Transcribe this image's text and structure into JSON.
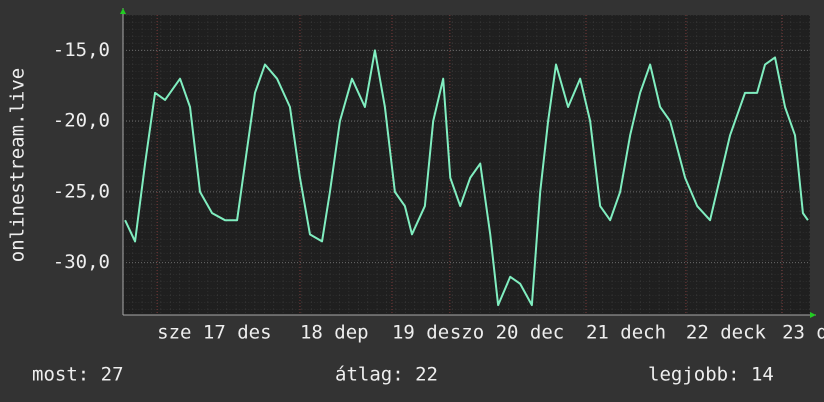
{
  "chart_data": {
    "type": "line",
    "y_label": "onlinestream.live",
    "xlim": [
      0,
      165
    ],
    "xticks": [
      {
        "value": 8.2,
        "label": "sze 17 des"
      },
      {
        "value": 42.5,
        "label": "18 dep"
      },
      {
        "value": 64.6,
        "label": "19 de"
      },
      {
        "value": 78.5,
        "label": "szo 20 dec"
      },
      {
        "value": 111.2,
        "label": "21 dech"
      },
      {
        "value": 135.2,
        "label": "22 deck"
      },
      {
        "value": 158.3,
        "label": "23 d"
      }
    ],
    "ylim": [
      -33.7,
      -12.5
    ],
    "yticks": [
      {
        "value": -15,
        "label": "-15,0"
      },
      {
        "value": -20,
        "label": "-20,0"
      },
      {
        "value": -25,
        "label": "-25,0"
      },
      {
        "value": -30,
        "label": "-30,0"
      }
    ],
    "grid": true,
    "series": [
      {
        "color": "#80eec0",
        "x": [
          0.5,
          2.9,
          5.3,
          7.7,
          10.1,
          13.7,
          16.1,
          18.5,
          21.4,
          24.5,
          27.4,
          29.3,
          31.7,
          34.1,
          37,
          40.1,
          42.5,
          44.9,
          47.8,
          49.7,
          52.1,
          55,
          58.1,
          60.5,
          62.9,
          65.3,
          67.7,
          69.4,
          72.5,
          74.5,
          76.9,
          78.6,
          81,
          83.4,
          85.8,
          88.2,
          90.1,
          93,
          95.4,
          98.2,
          100.2,
          102.1,
          104,
          106.9,
          109.8,
          112.2,
          114.6,
          117,
          119.4,
          121.8,
          124.2,
          126.6,
          129,
          131.4,
          135,
          137.9,
          141,
          143.4,
          145.8,
          149.4,
          152.3,
          154.2,
          156.6,
          159,
          161.4,
          163.3,
          164.5
        ],
        "values": [
          -27,
          -28.5,
          -23,
          -18,
          -18.5,
          -17,
          -19,
          -25,
          -26.5,
          -27,
          -27,
          -23,
          -18,
          -16,
          -17,
          -19,
          -24,
          -28,
          -28.5,
          -25,
          -20,
          -17,
          -19,
          -15,
          -19,
          -25,
          -26,
          -28,
          -26,
          -20,
          -17,
          -24,
          -26,
          -24,
          -23,
          -28,
          -33,
          -31,
          -31.5,
          -33,
          -25,
          -20,
          -16,
          -19,
          -17,
          -20,
          -26,
          -27,
          -25,
          -21,
          -18,
          -16,
          -19,
          -20,
          -24,
          -26,
          -27,
          -24,
          -21,
          -18,
          -18,
          -16,
          -15.5,
          -19,
          -21,
          -26.5,
          -27
        ]
      }
    ]
  },
  "footer": {
    "current": "most: 27",
    "average": "átlag: 22",
    "best": "legjobb: 14"
  }
}
